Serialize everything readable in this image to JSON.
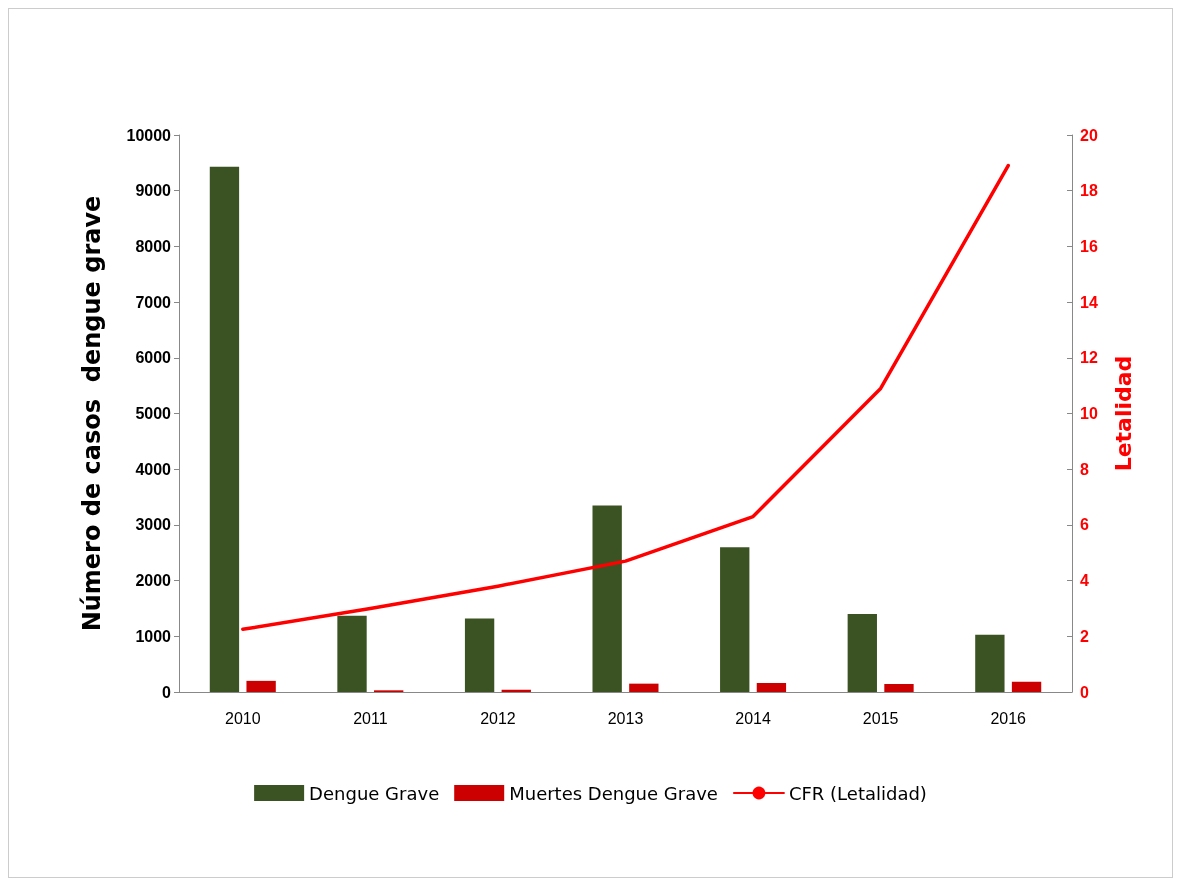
{
  "chart_data": {
    "type": "bar",
    "ylabel": "Número de casos  dengue grave",
    "y2label": "Letalidad",
    "categories": [
      "2010",
      "2011",
      "2012",
      "2013",
      "2014",
      "2015",
      "2016"
    ],
    "series": [
      {
        "name": "Dengue Grave",
        "color": "#3b5323",
        "values": [
          9430,
          1370,
          1320,
          3350,
          2600,
          1400,
          1030
        ]
      },
      {
        "name": "Muertes Dengue Grave",
        "color": "#cc0000",
        "values": [
          200,
          30,
          40,
          150,
          160,
          145,
          185
        ]
      },
      {
        "name": "CFR (Letalidad)",
        "type": "line",
        "axis": "y2",
        "color": "#ff0000",
        "values": [
          2.25,
          3.0,
          3.8,
          4.7,
          6.3,
          10.9,
          18.9
        ]
      }
    ],
    "ylim": [
      0,
      10000
    ],
    "yticks": [
      0,
      1000,
      2000,
      3000,
      4000,
      5000,
      6000,
      7000,
      8000,
      9000,
      10000
    ],
    "y2lim": [
      0,
      20
    ],
    "y2ticks": [
      0,
      2,
      4,
      6,
      8,
      10,
      12,
      14,
      16,
      18,
      20
    ],
    "grid": false,
    "legend": "bottom",
    "marker": "none"
  }
}
